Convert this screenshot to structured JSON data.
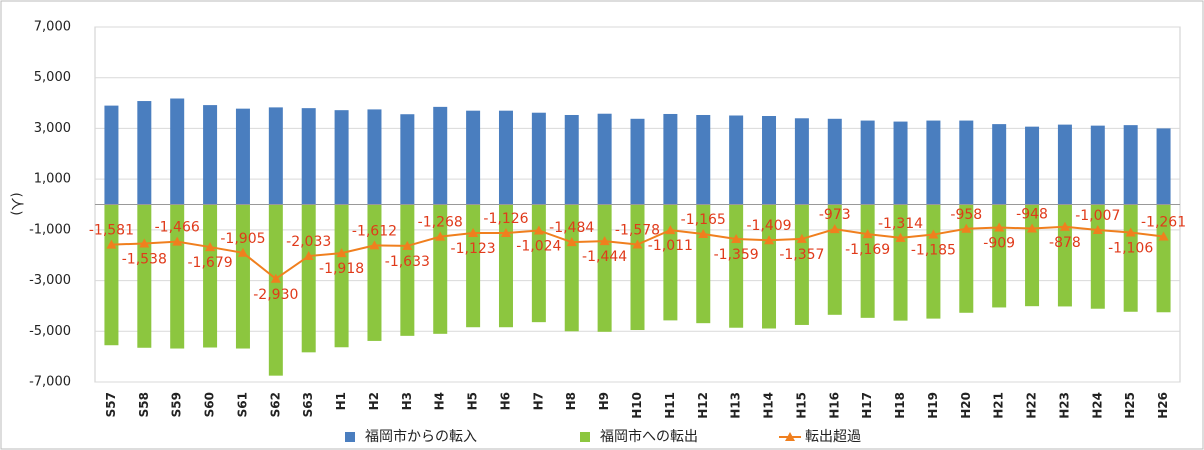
{
  "chart_data": {
    "type": "bar",
    "y_label": "(人)",
    "categories": [
      "S57",
      "S58",
      "S59",
      "S60",
      "S61",
      "S62",
      "S63",
      "H1",
      "H2",
      "H3",
      "H4",
      "H5",
      "H6",
      "H7",
      "H8",
      "H9",
      "H10",
      "H11",
      "H12",
      "H13",
      "H14",
      "H15",
      "H16",
      "H17",
      "H18",
      "H19",
      "H20",
      "H21",
      "H22",
      "H23",
      "H24",
      "H25",
      "H26"
    ],
    "ylim": [
      -7000,
      7000
    ],
    "yticks": [
      {
        "value": -7000,
        "label": "-7,000"
      },
      {
        "value": -5000,
        "label": "-5,000"
      },
      {
        "value": -3000,
        "label": "-3,000"
      },
      {
        "value": -1000,
        "label": "-1,000"
      },
      {
        "value": 1000,
        "label": "1,000"
      },
      {
        "value": 3000,
        "label": "3,000"
      },
      {
        "value": 5000,
        "label": "5,000"
      },
      {
        "value": 7000,
        "label": "7,000"
      }
    ],
    "grid": true,
    "legend": "bottom",
    "series": [
      {
        "name": "福岡市からの転入",
        "type": "bar",
        "color": "#4a7ebf",
        "values": [
          3900,
          4080,
          4180,
          3920,
          3780,
          3830,
          3800,
          3720,
          3750,
          3560,
          3850,
          3700,
          3700,
          3620,
          3530,
          3580,
          3380,
          3570,
          3530,
          3510,
          3490,
          3400,
          3380,
          3310,
          3270,
          3310,
          3310,
          3170,
          3070,
          3150,
          3110,
          3130,
          3000
        ]
      },
      {
        "name": "福岡市への転出",
        "type": "bar",
        "color": "#8cc63f",
        "values": [
          -5550,
          -5650,
          -5680,
          -5640,
          -5680,
          -6750,
          -5830,
          -5630,
          -5380,
          -5180,
          -5100,
          -4840,
          -4840,
          -4640,
          -5000,
          -5020,
          -4950,
          -4570,
          -4680,
          -4860,
          -4890,
          -4750,
          -4350,
          -4470,
          -4580,
          -4500,
          -4270,
          -4060,
          -4010,
          -4020,
          -4110,
          -4230,
          -4250
        ]
      },
      {
        "name": "転出超過",
        "type": "line",
        "color": "#f07f1e",
        "values": [
          -1581,
          -1538,
          -1466,
          -1679,
          -1905,
          -2930,
          -2033,
          -1918,
          -1612,
          -1633,
          -1268,
          -1123,
          -1126,
          -1024,
          -1484,
          -1444,
          -1578,
          -1011,
          -1165,
          -1359,
          -1409,
          -1357,
          -973,
          -1169,
          -1314,
          -1185,
          -958,
          -909,
          -948,
          -878,
          -1007,
          -1106,
          -1261
        ],
        "value_labels": [
          "-1,581",
          "-1,538",
          "-1,466",
          "-1,679",
          "-1,905",
          "-2,930",
          "-2,033",
          "-1,918",
          "-1,612",
          "-1,633",
          "-1,268",
          "-1,123",
          "-1,126",
          "-1,024",
          "-1,484",
          "-1,444",
          "-1,578",
          "-1,011",
          "-1,165",
          "-1,359",
          "-1,409",
          "-1,357",
          "-973",
          "-1,169",
          "-1,314",
          "-1,185",
          "-958",
          "-909",
          "-948",
          "-878",
          "-1,007",
          "-1,106",
          "-1,261"
        ]
      }
    ]
  }
}
